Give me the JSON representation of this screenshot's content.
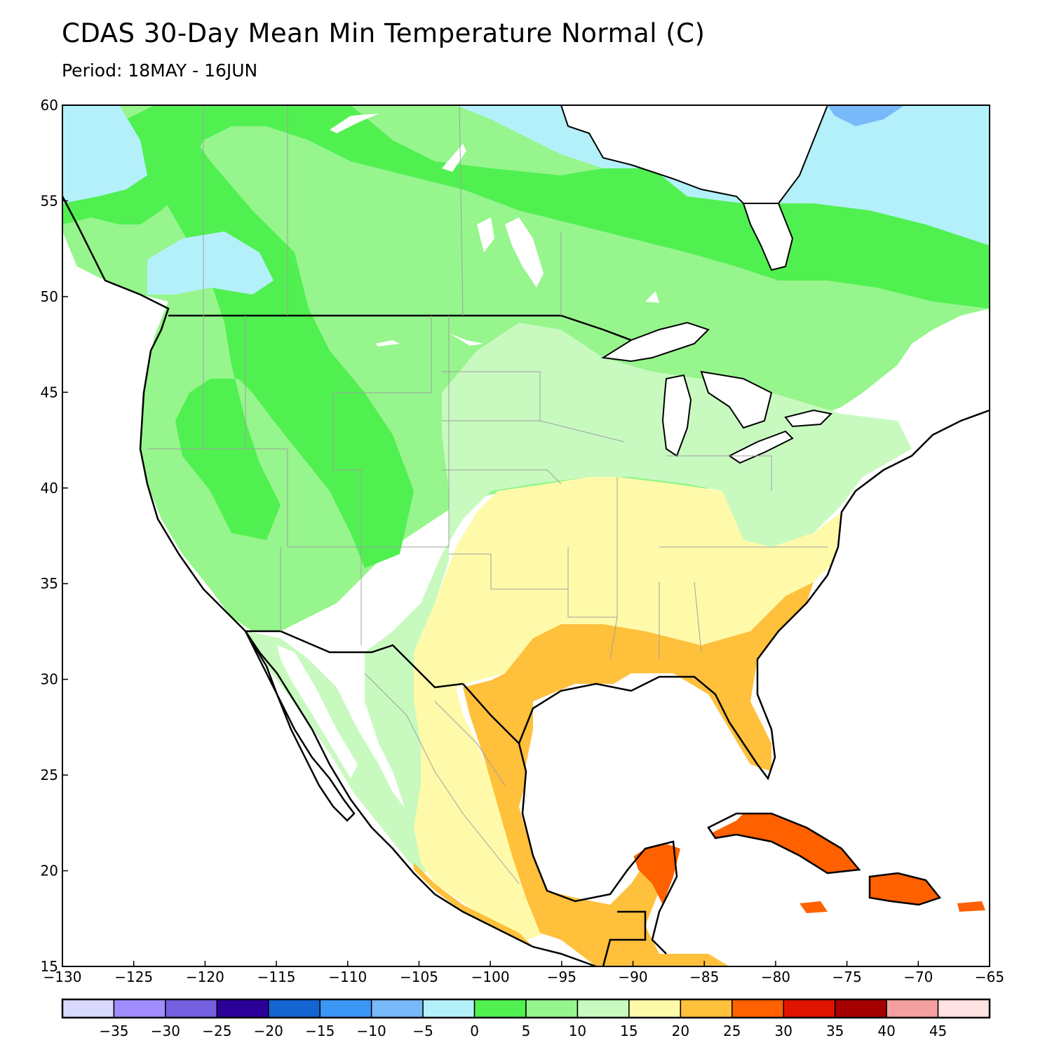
{
  "title": "CDAS 30-Day Mean Min Temperature Normal (C)",
  "period_label": "Period:",
  "period_value": "18MAY - 16JUN",
  "map": {
    "lon_range": [
      -130,
      -65
    ],
    "lat_range": [
      15,
      60
    ],
    "lon_ticks": [
      -130,
      -125,
      -120,
      -115,
      -110,
      -105,
      -100,
      -95,
      -90,
      -85,
      -80,
      -75,
      -70,
      -65
    ],
    "lat_ticks": [
      15,
      20,
      25,
      30,
      35,
      40,
      45,
      50,
      55,
      60
    ],
    "lon_tick_labels": [
      "−130",
      "−125",
      "−120",
      "−115",
      "−110",
      "−105",
      "−100",
      "−95",
      "−90",
      "−85",
      "−80",
      "−75",
      "−70",
      "−65"
    ],
    "lat_tick_labels": [
      "15",
      "20",
      "25",
      "30",
      "35",
      "40",
      "45",
      "50",
      "55",
      "60"
    ]
  },
  "legend": {
    "colors": [
      "#d9d9ff",
      "#a08cff",
      "#7460e0",
      "#2a0099",
      "#1464d2",
      "#3c96f5",
      "#78b9fa",
      "#b4f0fa",
      "#50f050",
      "#96f58c",
      "#c8fac0",
      "#fffaaa",
      "#ffc03c",
      "#ff6000",
      "#e11400",
      "#a50000",
      "#f5a0a0",
      "#ffe2e2"
    ],
    "labels": [
      "−35",
      "−30",
      "−25",
      "−20",
      "−15",
      "−10",
      "−5",
      "0",
      "5",
      "10",
      "15",
      "20",
      "25",
      "30",
      "35",
      "40",
      "45"
    ]
  },
  "colors": {
    "c_m5_0": "#b4f0fa",
    "c_0_5": "#50f050",
    "c_5_10": "#96f58c",
    "c_10_15": "#c8fac0",
    "c_15_20": "#fffaaa",
    "c_20_25": "#ffc03c",
    "c_25_30": "#ff6000",
    "c_m10_m5": "#78b9fa"
  }
}
